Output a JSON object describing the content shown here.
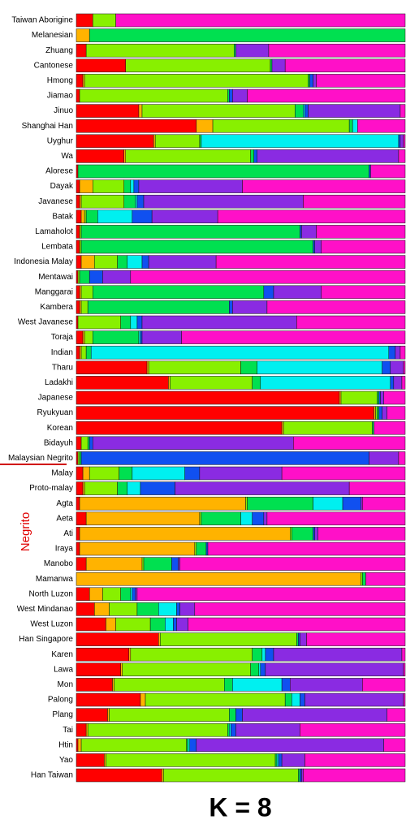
{
  "chart_data": {
    "type": "stacked_barh",
    "title": "K = 8",
    "annotation": "Negrito",
    "categories": [
      "Taiwan Aborigine",
      "Melanesian",
      "Zhuang",
      "Cantonese",
      "Hmong",
      "Jiamao",
      "Jinuo",
      "Shanghai Han",
      "Uyghur",
      "Wa",
      "Alorese",
      "Dayak",
      "Javanese",
      "Batak",
      "Lamaholot",
      "Lembata",
      "Indonesia Malay",
      "Mentawai",
      "Manggarai",
      "Kambera",
      "West Javanese",
      "Toraja",
      "Indian",
      "Tharu",
      "Ladakhi",
      "Japanese",
      "Ryukyuan",
      "Korean",
      "Bidayuh",
      "Malaysian Negrito",
      "Malay",
      "Proto-malay",
      "Agta",
      "Aeta",
      "Ati",
      "Iraya",
      "Manobo",
      "Mamanwa",
      "North Luzon",
      "West Mindanao",
      "West Luzon",
      "Han Singapore",
      "Karen",
      "Lawa",
      "Mon",
      "Palong",
      "Plang",
      "Tai",
      "Htin",
      "Yao",
      "Han Taiwan"
    ],
    "xlim": [
      0,
      1
    ],
    "series": [
      {
        "color": "#ff0000",
        "values": [
          0.05,
          0,
          0.03,
          0.15,
          0.02,
          0.01,
          0.19,
          0.365,
          0.235,
          0.145,
          0.005,
          0.01,
          0.01,
          0.015,
          0.01,
          0.01,
          0.015,
          0.005,
          0.01,
          0.01,
          0.005,
          0.02,
          0.01,
          0.215,
          0.28,
          0.8,
          0.905,
          0.625,
          0.015,
          0.005,
          0.02,
          0.02,
          0.01,
          0.03,
          0.01,
          0.01,
          0.03,
          0,
          0.04,
          0.055,
          0.09,
          0.25,
          0.16,
          0.135,
          0.11,
          0.195,
          0.095,
          0.03,
          0.005,
          0.085,
          0.26
        ]
      },
      {
        "color": "#ffb300",
        "values": [
          0,
          0.04,
          0,
          0,
          0.005,
          0,
          0.01,
          0.05,
          0.005,
          0.005,
          0,
          0.04,
          0.005,
          0.01,
          0,
          0,
          0.04,
          0,
          0.005,
          0.005,
          0,
          0.005,
          0.005,
          0.005,
          0.005,
          0.005,
          0.005,
          0.005,
          0,
          0,
          0.02,
          0.005,
          0.505,
          0.345,
          0.64,
          0.35,
          0.17,
          0.865,
          0.04,
          0.045,
          0.03,
          0.005,
          0.005,
          0.005,
          0.005,
          0.015,
          0.005,
          0.005,
          0.01,
          0.005,
          0.005
        ]
      },
      {
        "color": "#88f000",
        "values": [
          0.07,
          0,
          0.45,
          0.44,
          0.68,
          0.45,
          0.465,
          0.415,
          0.135,
          0.38,
          0,
          0.095,
          0.13,
          0.005,
          0.005,
          0.005,
          0.07,
          0.005,
          0.035,
          0.02,
          0.13,
          0.025,
          0.015,
          0.28,
          0.25,
          0.11,
          0.005,
          0.27,
          0.02,
          0.005,
          0.09,
          0.1,
          0.005,
          0.005,
          0.005,
          0.005,
          0.005,
          0.005,
          0.055,
          0.085,
          0.105,
          0.415,
          0.37,
          0.39,
          0.335,
          0.425,
          0.365,
          0.425,
          0.32,
          0.515,
          0.41
        ]
      },
      {
        "color": "#00e050",
        "values": [
          0,
          0.96,
          0.005,
          0.005,
          0.005,
          0.005,
          0.025,
          0.01,
          0.005,
          0.01,
          0.885,
          0.02,
          0.035,
          0.035,
          0.665,
          0.705,
          0.03,
          0.03,
          0.52,
          0.43,
          0.03,
          0.14,
          0.015,
          0.05,
          0.025,
          0.005,
          0.005,
          0.005,
          0.005,
          0.005,
          0.04,
          0.03,
          0.2,
          0.12,
          0.065,
          0.03,
          0.085,
          0.01,
          0.03,
          0.065,
          0.045,
          0.005,
          0.03,
          0.025,
          0.025,
          0.02,
          0.02,
          0.005,
          0.005,
          0.005,
          0.005
        ]
      },
      {
        "color": "#00f0f0",
        "values": [
          0,
          0,
          0,
          0,
          0,
          0,
          0.005,
          0.015,
          0.6,
          0,
          0,
          0.01,
          0.005,
          0.105,
          0,
          0,
          0.045,
          0,
          0,
          0,
          0.02,
          0.005,
          0.905,
          0.38,
          0.395,
          0,
          0,
          0,
          0,
          0,
          0.16,
          0.04,
          0.09,
          0.035,
          0,
          0,
          0,
          0,
          0.005,
          0.055,
          0.025,
          0,
          0.01,
          0.005,
          0.15,
          0.025,
          0,
          0.005,
          0.005,
          0.005,
          0
        ]
      },
      {
        "color": "#1050f0",
        "values": [
          0,
          0,
          0,
          0,
          0.01,
          0.01,
          0.01,
          0,
          0.005,
          0.01,
          0.005,
          0.015,
          0.02,
          0.06,
          0.005,
          0.005,
          0.02,
          0.04,
          0.03,
          0.01,
          0.015,
          0.005,
          0.02,
          0.025,
          0.01,
          0.005,
          0.01,
          0,
          0.01,
          0.875,
          0.045,
          0.105,
          0.055,
          0.035,
          0.005,
          0.005,
          0.02,
          0,
          0.01,
          0.01,
          0.01,
          0.005,
          0.025,
          0.015,
          0.025,
          0.015,
          0.02,
          0.015,
          0.02,
          0.01,
          0.005
        ]
      },
      {
        "color": "#8a2be2",
        "values": [
          0,
          0,
          0.1,
          0.04,
          0.01,
          0.045,
          0.28,
          0,
          0.01,
          0.43,
          0,
          0.315,
          0.485,
          0.2,
          0.045,
          0.02,
          0.205,
          0.085,
          0.145,
          0.105,
          0.47,
          0.12,
          0.015,
          0.04,
          0.025,
          0.01,
          0.015,
          0,
          0.61,
          0.09,
          0.25,
          0.53,
          0.005,
          0.01,
          0.01,
          0,
          0.005,
          0,
          0.005,
          0.045,
          0.035,
          0.02,
          0.39,
          0.42,
          0.22,
          0.3,
          0.44,
          0.195,
          0.57,
          0.07,
          0.005
        ]
      },
      {
        "color": "#ff10c8",
        "values": [
          0.88,
          0,
          0.415,
          0.365,
          0.27,
          0.48,
          0.015,
          0.145,
          0.005,
          0.02,
          0.105,
          0.495,
          0.31,
          0.57,
          0.27,
          0.255,
          0.575,
          0.835,
          0.255,
          0.42,
          0.33,
          0.68,
          0.015,
          0.005,
          0.01,
          0.065,
          0.055,
          0.095,
          0.34,
          0.02,
          0.375,
          0.17,
          0.13,
          0.42,
          0.265,
          0.6,
          0.685,
          0.12,
          0.815,
          0.64,
          0.66,
          0.3,
          0.01,
          0.005,
          0.13,
          0.005,
          0.055,
          0.32,
          0.065,
          0.305,
          0.31
        ]
      }
    ]
  }
}
